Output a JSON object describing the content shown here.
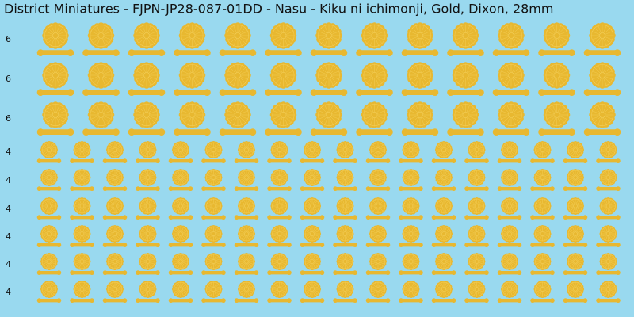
{
  "title": "District Miniatures - FJPN-JP28-087-01DD - Nasu - Kiku ni ichimonji, Gold, Dixon, 28mm",
  "row_labels": [
    "6",
    "6",
    "6",
    "4",
    "4",
    "4",
    "4",
    "4",
    "4"
  ]
}
